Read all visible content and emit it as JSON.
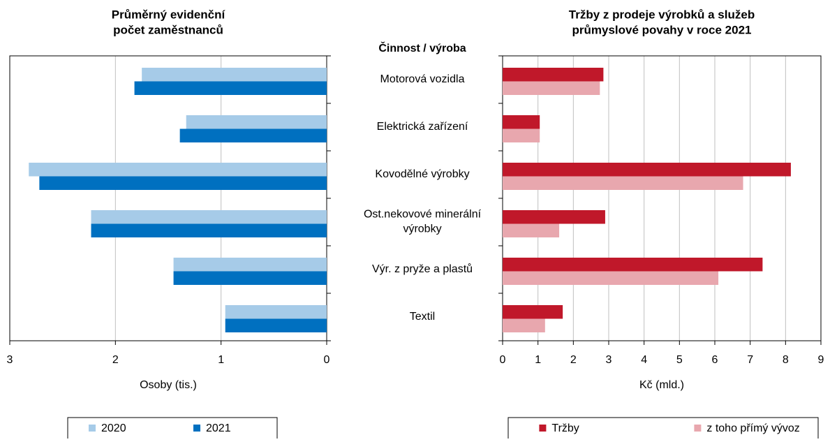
{
  "chart_data": [
    {
      "type": "bar",
      "orientation": "horizontal",
      "title": [
        "Průměrný evidenční",
        "počet zaměstnanců"
      ],
      "category_header": "Činnost / výroba",
      "categories": [
        "Motorová vozidla",
        "Elektrická zařízení",
        "Kovodělné výrobky",
        [
          "Ost.nekovové minerální",
          "výrobky"
        ],
        "Výr. z pryže a plastů",
        "Textil"
      ],
      "series": [
        {
          "name": "2020",
          "color": "#a6cbe8",
          "values": [
            1.75,
            1.33,
            2.82,
            2.23,
            1.45,
            0.96
          ]
        },
        {
          "name": "2021",
          "color": "#0070c0",
          "values": [
            1.82,
            1.39,
            2.72,
            2.23,
            1.45,
            0.96
          ]
        }
      ],
      "xlabel": "Osoby (tis.)",
      "xlim": [
        3,
        0
      ],
      "xticks": [
        3,
        2,
        1,
        0
      ],
      "grid": true
    },
    {
      "type": "bar",
      "orientation": "horizontal",
      "title": [
        "Tržby z prodeje výrobků a služeb",
        "průmyslové povahy v roce 2021"
      ],
      "series": [
        {
          "name": "Tržby",
          "color": "#c0182a",
          "values": [
            2.85,
            1.05,
            8.15,
            2.9,
            7.35,
            1.7
          ]
        },
        {
          "name": "z toho přímý vývoz",
          "color": "#e8a7ae",
          "values": [
            2.75,
            1.05,
            6.8,
            1.6,
            6.1,
            1.2
          ]
        }
      ],
      "xlabel": "Kč (mld.)",
      "xlim": [
        0,
        9
      ],
      "xticks": [
        0,
        1,
        2,
        3,
        4,
        5,
        6,
        7,
        8,
        9
      ],
      "grid": true
    }
  ]
}
